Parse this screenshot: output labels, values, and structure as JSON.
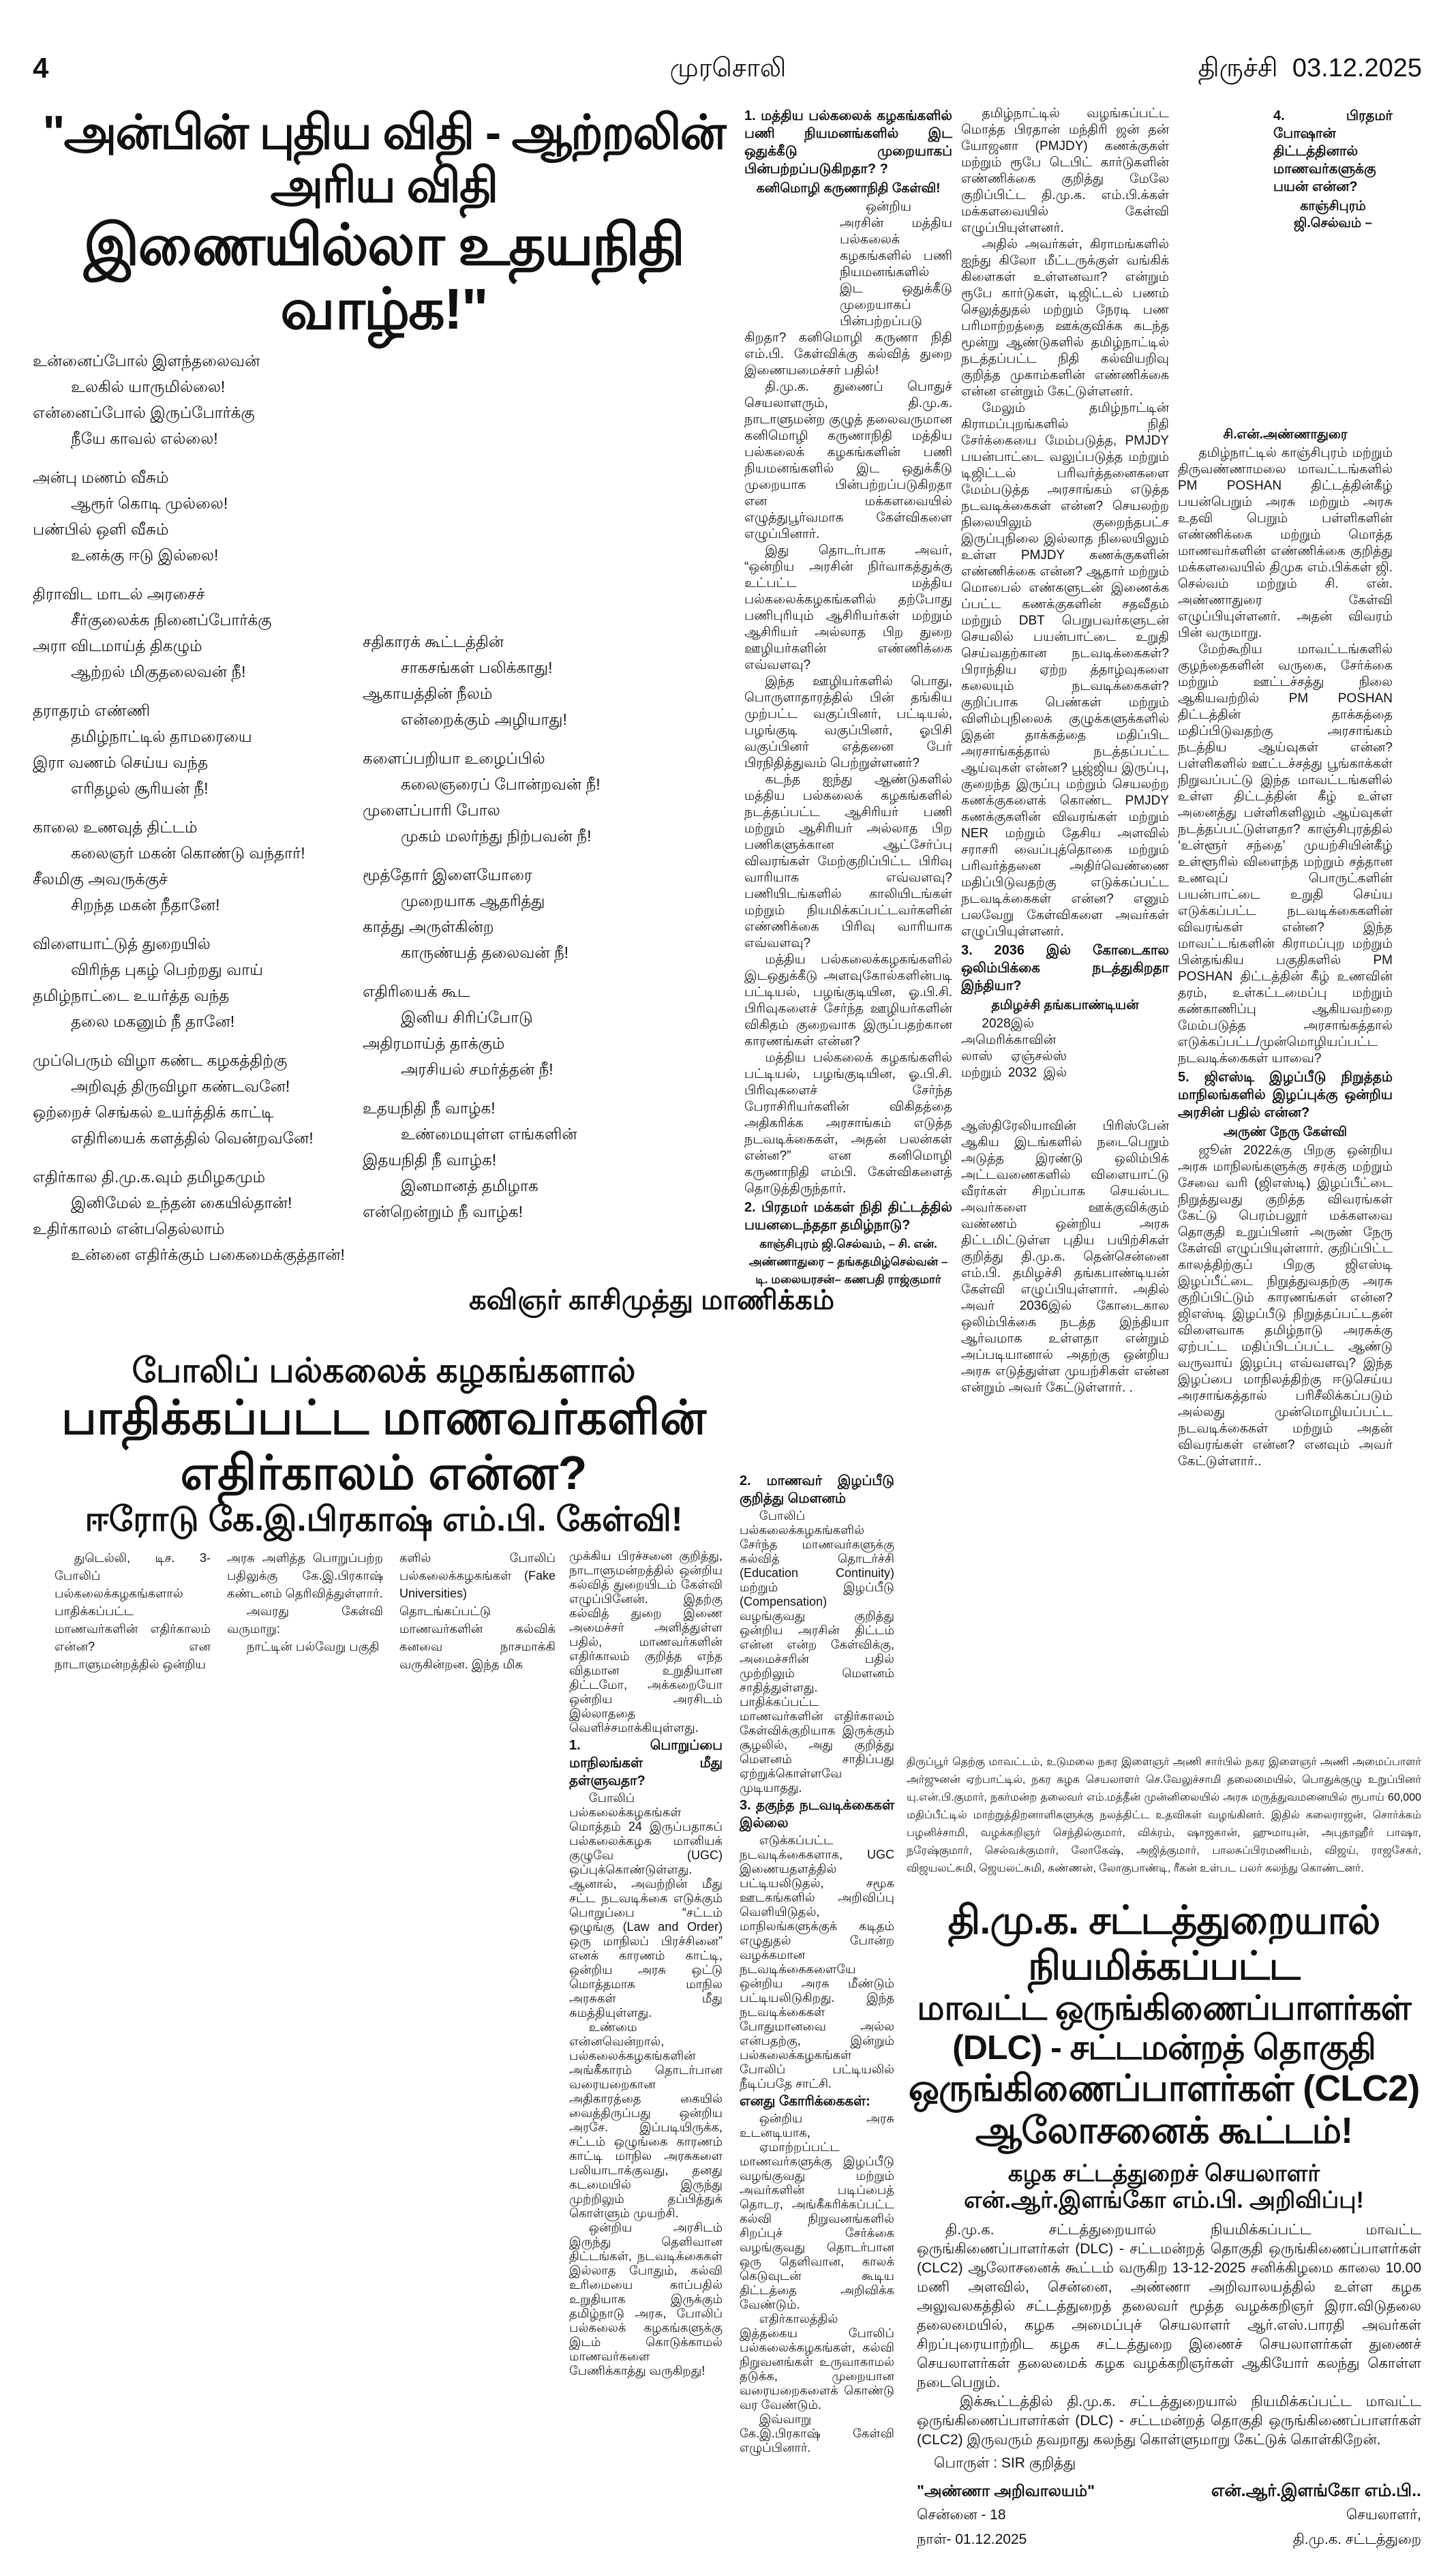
{
  "masthead": {
    "page_number": "4",
    "paper_name": "முரசொலி",
    "edition": "திருச்சி",
    "date": "03.12.2025"
  },
  "poem_article": {
    "headline_line1": "\"அன்பின் புதிய விதி  -  ஆற்றலின் அரிய விதி",
    "headline_line2": "இணையில்லா உதயநிதி வாழ்க!\"",
    "left_stanzas": [
      [
        "உன்னைப்போல் இளந்தலைவன்",
        "உலகில் யாருமில்லை!",
        "என்னைப்போல் இருப்போர்க்கு",
        "நீயே காவல் எல்லை!"
      ],
      [
        "அன்பு மணம் வீசும்",
        "ஆரூர் கொடி முல்லை!",
        "பண்பில் ஒளி வீசும்",
        "உனக்கு ஈடு இல்லை!"
      ],
      [
        "திராவிட மாடல் அரசைச்",
        "சீர்குலைக்க நினைப்போர்க்கு",
        "அரா விடமாய்த் திகழும்",
        "ஆற்றல் மிகுதலைவன் நீ!"
      ],
      [
        "தராதரம் எண்ணி",
        "தமிழ்நாட்டில் தாமரையை",
        "இரா வணம் செய்ய வந்த",
        "எரிதழல் சூரியன் நீ!"
      ],
      [
        "காலை உணவுத் திட்டம்",
        "கலைஞர் மகன் கொண்டு வந்தார்!",
        "சீலமிகு அவருக்குச்",
        "சிறந்த மகன் நீதானே!"
      ],
      [
        "விளையாட்டுத் துறையில்",
        "விரிந்த புகழ் பெற்றது வாய்",
        "தமிழ்நாட்டை உயர்த்த வந்த",
        "தலை மகனும் நீ தானே!"
      ],
      [
        "முப்பெரும் விழா கண்ட கழகத்திற்கு",
        "அறிவுத் திருவிழா கண்டவனே!",
        "ஒற்றைச் செங்கல் உயர்த்திக் காட்டி",
        "எதிரியைக் களத்தில் வென்றவனே!"
      ],
      [
        "எதிர்கால தி.மு.க.வும் தமிழகமும்",
        "இனிமேல் உந்தன் கையில்தான்!",
        "உதிர்காலம் என்பதெல்லாம்",
        "உன்னை எதிர்க்கும் பகைமைக்குத்தான்!"
      ]
    ],
    "right_stanzas": [
      [
        "சதிகாரக் கூட்டத்தின்",
        "சாகசங்கள் பலிக்காது!",
        "ஆகாயத்தின் நீலம்",
        "என்றைக்கும் அழியாது!"
      ],
      [
        "களைப்பறியா உழைப்பில்",
        "கலைஞரைப் போன்றவன் நீ!",
        "முளைப்பாரி போல",
        "முகம் மலர்ந்து நிற்பவன் நீ!"
      ],
      [
        "மூத்தோர் இளையோரை",
        "முறையாக ஆதரித்து",
        "காத்து அருள்கின்ற",
        "காருண்யத் தலைவன் நீ!"
      ],
      [
        "எதிரியைக் கூட",
        "இனிய சிரிப்போடு",
        "அதிரமாய்த் தாக்கும்",
        "அரசியல் சமர்த்தன் நீ!"
      ],
      [
        "உதயநிதி நீ வாழ்க!",
        "உண்மையுள்ள எங்களின்",
        "இதயநிதி நீ வாழ்க!",
        "இனமானத் தமிழாக",
        "என்றென்றும் நீ வாழ்க!"
      ]
    ],
    "poet": "கவிஞர் காசிமுத்து மாணிக்கம்"
  },
  "parliament_questions": {
    "col_a": [
      {
        "type": "h",
        "text": "1.  மத்திய பல்கலைக் கழகங்களில் பணி நியமனங்களில் இட ஒதுக்கீடு முறையாகப் பின்பற்றப்படுகிறதா? ?"
      },
      {
        "type": "by",
        "text": "கனிமொழி கருணாநிதி கேள்வி!"
      },
      {
        "type": "wrap",
        "text": "ஒன்றிய அரசின் மத்திய பல்கலைக் கழகங்களில் பணி நியமனங்களில் இட ஒதுக்கீடு முறையாகப் பின்பற்றப்படு கிறதா? கனிமொழி கருணா நிதி எம்.பி. கேள்விக்கு கல்வித் துறை இணையமைச்சர் பதில்!"
      },
      {
        "type": "p",
        "text": "தி.மு.க. துணைப் பொதுச் செயலாளரும், தி.மு.க. நாடாளுமன்ற குழுத் தலைவருமான கனிமொழி கருணாநிதி மத்திய பல்கலைக் கழகங்களின் பணி நியமனங்களில் இட ஒதுக்கீடு முறையாக பின்பற்றப்படுகிறதா என மக்களவையில் எழுத்துபூர்வமாக கேள்விகளை எழுப்பினார்."
      },
      {
        "type": "p",
        "text": "இது தொடர்பாக அவர், “ஒன்றிய அரசின் நிர்வாகத்துக்கு உட்பட்ட மத்திய பல்கலைக்கழகங்களில் தற்போது பணிபுரியும் ஆசிரியர்கள் மற்றும் ஆசிரியர் அல்லாத பிற துறை ஊழியர்களின் எண்ணிக்கை எவ்வளவு?"
      },
      {
        "type": "p",
        "text": "இந்த ஊழியர்களில் பொது, பொருளாதாரத்தில் பின் தங்கிய முற்பட்ட வகுப்பினர், பட்டியல், பழங்குடி வகுப்பினர், ஓபிசி வகுப்பினர் எத்தனை பேர் பிரநிதித்துவம் பெற்றுள்ளனர்?"
      },
      {
        "type": "p",
        "text": "கடந்த ஐந்து ஆண்டுகளில் மத்திய பல்கலைக் கழகங்களில் நடத்தப்பட்ட ஆசிரியர் பணி மற்றும் ஆசிரியர் அல்லாத பிற பணிகளுக்கான ஆட்சேர்ப்பு விவரங்கள் மேற்குறிப்பிட்ட பிரிவு வாரியாக எவ்வளவு? பணியிடங்களில் காலியிடங்கள் மற்றும் நியமிக்கப்பட்டவர்களின் எண்ணிக்கை பிரிவு வாரியாக எவ்வளவு?"
      },
      {
        "type": "p",
        "text": "மத்திய பல்கலைக்கழகங்களில் இடஒதுக்கீடு அளவுகோல்களின்படி பட்டியல், பழங்குடியின, ஓ.பி.சி. பிரிவுகளைச் சேர்ந்த ஊழியர்களின் விகிதம் குறைவாக இருப்பதற்கான காரணங்கள் என்ன?"
      },
      {
        "type": "p",
        "text": "மத்திய பல்கலைக் கழகங்களில் பட்டியல், பழங்குடியின, ஓ.பி.சி. பிரிவுகளைச் சேர்ந்த பேராசிரியர்களின் விகிதத்தை அதிகரிக்க அரசாங்கம் எடுத்த நடவடிக்கைகள், அதன் பலன்கள் என்ன?” என கனிமொழி கருணாநிதி எம்பி. கேள்விகளைத் தொடுத்திருந்தார்."
      },
      {
        "type": "h",
        "text": "2.  பிரதமர் மக்கள் நிதி திட்டத்தில் பயனடைந்ததா தமிழ்நாடு?"
      },
      {
        "type": "sub",
        "text": "காஞ்சிபுரம் ஜி.செல்வம், – சி. என். அண்ணாதுரை – தங்கதமிழ்செல்வன் – டி. மலையரசன்– கணபதி ராஜ்குமார்"
      }
    ],
    "col_b": [
      {
        "type": "p",
        "text": "தமிழ்நாட்டில் வழங்கப்பட்ட மொத்த பிரதான் மந்திரி ஜன் தன் யோஜனா (PMJDY) கணக்குகள் மற்றும் ரூபே டெபிட் கார்டுகளின் எண்ணிக்கை குறித்து மேலே குறிப்பிட்ட தி.மு.க. எம்.பி.க்கள் மக்களவையில் கேள்வி எழுப்பியுள்ளனர்."
      },
      {
        "type": "p",
        "text": "அதில் அவர்கள், கிராமங்களில் ஐந்து கிலோ மீட்டருக்குள் வங்கிக் கிளைகள் உள்ளனவா? என்றும் ரூபே கார்டுகள், டிஜிட்டல் பணம் செலுத்துதல் மற்றும் நேரடி பண பரிமாற்றத்தை ஊக்குவிக்க கடந்த மூன்று ஆண்டுகளில் தமிழ்நாட்டில் நடத்தப்பட்ட நிதி கல்வியறிவு குறித்த முகாம்களின் எண்ணிக்கை என்ன என்றும் கேட்டுள்ளனர்."
      },
      {
        "type": "p",
        "text": "மேலும் தமிழ்நாட்டின் கிராமப்புறங்களில் நிதி சேர்க்கையை மேம்படுத்த, PMJDY பயன்பாட்டை வலுப்படுத்த மற்றும் டிஜிட்டல் பரிவர்த்தனைகளை மேம்படுத்த அரசாங்கம் எடுத்த நடவடிக்கைகள் என்ன? செயலற்ற நிலையிலும் குறைந்தபட்ச இருப்புநிலை இல்லாத நிலையிலும் உள்ள PMJDY கணக்குகளின் எண்ணிக்கை என்ன? ஆதார் மற்றும் மொபைல் எண்களுடன் இணைக்க ப்பட்ட கணக்குகளின் சதவீதம் மற்றும் DBT பெறுபவர்களுடன் செயலில் பயன்பாட்டை உறுதி செய்வதற்கான நடவடிக்கைகள்? பிராந்திய ஏற்ற த்தாழ்வுகளை கலையும் நடவடிக்கைகள்? குறிப்பாக பெண்கள் மற்றும் விளிம்புநிலைக் குழுக்களுக்களில் இதன் தாக்கத்தை மதிப்பிட அரசாங்கத்தால் நடத்தப்பட்ட ஆய்வுகள் என்ன? பூஜ்ஜிய இருப்பு, குறைந்த இருப்பு மற்றும் செயலற்ற கணக்குகளைக் கொண்ட PMJDY கணக்குகளின் விவரங்கள் மற்றும் NER மற்றும் தேசிய அளவில் சராசரி வைப்புத்தொகை மற்றும் பரிவர்த்தனை அதிர்வெண்ணை மதிப்பிடுவதற்கு எடுக்கப்பட்ட நடவடிக்கைகள் என்ன? எனும் பலவேறு கேள்விகளை அவர்கள் எழுப்பியுள்ளனர்."
      },
      {
        "type": "h",
        "text": "3.  2036 இல் கோடைகால ஒலிம்பிக்கை நடத்துகிறதா இந்தியா?"
      },
      {
        "type": "by",
        "text": "தமிழச்சி தங்கபாண்டியன்"
      },
      {
        "type": "wrapr",
        "text": "2028இல் அமெரிக்காவின் லாஸ் ஏஞ்சல்ஸ் மற்றும் 2032 இல் ஆஸ்திரேலியாவின் பிரிஸ்பேன் ஆகிய இடங்களில் நடைபெறும் அடுத்த இரண்டு ஒலிம்பிக் அட்டவணைகளில் விளையாட்டு வீரர்கள் சிறப்பாக செயல்பட அவர்களை ஊக்குவிக்கும் வண்ணம் ஒன்றிய அரசு திட்டமிட்டுள்ள புதிய பயிற்சிகள் குறித்து தி.மு.க. தென்சென்னை எம்.பி. தமிழச்சி தங்கபாண்டியன் கேள்வி எழுப்பியுள்ளார். அதில் அவர் 2036இல் கோடைகால ஒலிம்பிக்கை நடத்த இந்தியா ஆர்வமாக உள்ளதா என்றும் அப்படியானால் அதற்கு ஒன்றிய அரசு எடுத்துள்ள முயற்சிகள் என்ன என்றும் அவர் கேட்டுள்ளார். ."
      }
    ],
    "col_c": [
      {
        "type": "wraph",
        "text": "4.   பிரதமர் போஷான் திட்டத்தினால் மாணவர்களுக்கு பயன் என்ன?"
      },
      {
        "type": "by",
        "text": "காஞ்சிபுரம் ஜி.செல்வம் – சி.என்.அண்ணாதுரை"
      },
      {
        "type": "p",
        "text": "தமிழ்நாட்டில் காஞ்சிபுரம் மற்றும் திருவண்ணாமலை மாவட்டங்களில் PM POSHAN திட்டத்தின்கீழ் பயன்பெறும் அரசு மற்றும் அரசு உதவி பெறும் பள்ளிகளின் எண்ணிக்கை மற்றும் மொத்த மாணவர்களின் எண்ணிக்கை குறித்து மக்களவையில் திமுக எம்.பிக்கள் ஜி. செல்வம் மற்றும் சி. என். அண்ணாதுரை கேள்வி எழுப்பியுள்ளனர். அதன் விவரம் பின் வருமாறு."
      },
      {
        "type": "p",
        "text": "மேற்கூறிய மாவட்டங்களில் குழந்தைகளின் வருகை, சேர்க்கை மற்றும் ஊட்டச்சத்து நிலை ஆகியவற்றில் PM POSHAN திட்டத்தின் தாக்கத்தை மதிப்பிடுவதற்கு அரசாங்கம் நடத்திய ஆய்வுகள் என்ன? பள்ளிகளில் ஊட்டச்சத்து பூங்காக்கள் நிறுவப்பட்டு இந்த மாவட்டங்களில் உள்ள திட்டத்தின் கீழ் உள்ள அனைத்து பள்ளிகளிலும் ஆய்வுகள் நடத்தப்பட்டுள்ளதா? காஞ்சிபுரத்தில் ‘உள்ளூர் சந்தை’ முயற்சியின்கீழ் உள்ளூரில் விளைந்த மற்றும் சத்தான உணவுப் பொருட்களின் பயன்பாட்டை உறுதி செய்ய எடுக்கப்பட்ட நடவடிக்கைகளின் விவரங்கள் என்ன? இந்த மாவட்டங்களின் கிராமப்புற மற்றும் பின்தங்கிய பகுதிகளில் PM POSHAN திட்டத்தின் கீழ் உணவின் தரம், உள்கட்டமைப்பு மற்றும் கண்காணிப்பு ஆகியவற்றை மேம்படுத்த அரசாங்கத்தால் எடுக்கப்பட்ட/முன்மொழியப்பட்ட நடவடிக்கைகள் யாவை?"
      },
      {
        "type": "h",
        "text": "5.  ஜிஎஸ்டி இழப்பீடு நிறுத்தம் மாநிலங்களில் இழப்புக்கு ஒன்றிய அரசின் பதில் என்ன?"
      },
      {
        "type": "by",
        "text": "அருண் நேரு கேள்வி"
      },
      {
        "type": "p",
        "text": "ஜூன் 2022க்கு பிறகு ஒன்றிய அரசு மாநிலங்களுக்கு சரக்கு மற்றும் சேவை வரி (ஜிஎஸ்டி) இழப்பீட்டை நிறுத்துவது குறித்த விவரங்கள் கேட்டு பெரம்பலூர் மக்களவை தொகுதி உறுப்பினர் அருண் நேரு கேள்வி எழுப்பியுள்ளார். குறிப்பிட்ட காலத்திற்குப் பிறகு ஜிஎஸ்டி இழப்பீட்டை நிறுத்துவதற்கு அரசு குறிப்பிட்டும் காரணங்கள் என்ன? ஜிஎஸ்டி இழப்பீடு நிறுத்தப்பட்டதன் விளைவாக தமிழ்நாடு அரசுக்கு ஏற்பட்ட மதிப்பிடப்பட்ட ஆண்டு வருவாய் இழப்பு எவ்வளவு? இந்த இழப்பை மாநிலத்திற்கு ஈடுசெய்ய அரசாங்கத்தால் பரிசீலிக்கப்படும் அல்லது முன்மொழியப்பட்ட நடவடிக்கைகள் மற்றும் அதன் விவரங்கள் என்ன? எனவும் அவர் கேட்டுள்ளார்.."
      }
    ]
  },
  "fake_university_article": {
    "headline_line1": "போலிப் பல்கலைக் கழகங்களால்",
    "headline_line2": "பாதிக்கப்பட்ட மாணவர்களின் எதிர்காலம் என்ன?",
    "headline_line3": "ஈரோடு கே.இ.பிரகாஷ் எம்.பி. கேள்வி!",
    "intro_col1": [
      {
        "type": "p",
        "text": "துடெல்லி, டிச. 3- போலிப் பல்கலைக்கழகங்களால் பாதிக்கப்பட்ட மாணவர்களின் எதிர்காலம் என்ன? என நாடாளுமன்றத்தில் ஒன்றிய"
      }
    ],
    "intro_col2": [
      {
        "type": "p0",
        "text": "அரசு அளித்த பொறுப்பற்ற பதிலுக்கு கே.இ.பிரகாஷ் கண்டனம் தெரிவித்துள்ளார்."
      },
      {
        "type": "p",
        "text": "அவரது கேள்வி வருமாறு:"
      },
      {
        "type": "p",
        "text": "நாட்டின் பல்வேறு பகுதி"
      }
    ],
    "intro_col3": [
      {
        "type": "p0",
        "text": "களில் போலிப் பல்கலைக்கழகங்கள் (Fake Universities) தொடங்கப்பட்டு மாணவர்களின் கல்விக் கனவை நாசமாக்கி வருகின்றன. இந்த மிக"
      }
    ],
    "body_col1": [
      {
        "type": "p0",
        "text": "முக்கிய பிரச்சனை குறித்து, நாடாளுமன்றத்தில் ஒன்றிய கல்வித் துறையிடம் கேள்வி எழுப்பினேன். இதற்கு கல்வித் துறை இணை அமைச்சர் அளித்துள்ள பதில், மாணவர்களின் எதிர்காலம் குறித்த எந்த விதமான உறுதியான திட்டமோ, அக்கறையோ ஒன்றிய அரசிடம் இல்லாததை வெளிச்சமாக்கியுள்ளது."
      },
      {
        "type": "h",
        "text": "1. பொறுப்பை மாநிலங்கள் மீது தள்ளுவதா?"
      },
      {
        "type": "p",
        "text": "போலிப் பல்கலைக்கழகங்கள் மொத்தம் 24 இருப்பதாகப் பல்கலைக்கழக மானியக் குழுவே (UGC) ஒப்புக்கொண்டுள்ளது. ஆனால், அவற்றின் மீது சட்ட நடவடிக்கை எடுக்கும் பொறுப்பை “சட்டம் ஒழுங்கு (Law and Order) ஒரு மாநிலப் பிரச்சினை” எனக் காரணம் காட்டி, ஒன்றிய அரசு ஒட்டு மொத்தமாக மாநில அரசுகள் மீது சுமத்தியுள்ளது."
      },
      {
        "type": "p",
        "text": "உண்மை என்னவென்றால், பல்கலைக்கழகங்களின் அங்கீகாரம் தொடர்பான வரையறைகான அதிகாரத்தை கையில் வைத்திருப்பது ஒன்றிய அரசே. இப்படியிருக்க, சட்டம் ஒழுங்கை காரணம் காட்டி மாநில அரசுகளை பலியாடாக்குவது, தனது கடமையில் இருந்து முற்றிலும் தப்பித்துக் கொள்ளும் முயற்சி."
      },
      {
        "type": "p",
        "text": "ஒன்றிய அரசிடம் இருந்து தெளிவான திட்டங்கள், நடவடிக்கைகள் இல்லாத போதும், கல்வி உரிமையை காப்பதில் உறுதியாக இருக்கும் தமிழ்நாடு அரசு, போலிப் பல்கலைக் கழகங்களுக்கு இடம் கொடுக்காமல் மாணவர்களை பேணிக்காத்து வருகிறது!"
      }
    ],
    "body_col2": [
      {
        "type": "h",
        "text": "2. மாணவர் இழப்பீடு குறித்து மௌனம்"
      },
      {
        "type": "p",
        "text": "போலிப் பல்கலைக்கழகங்களில் சேர்ந்த மாணவர்களுக்கு கல்வித் தொடர்ச்சி (Education Continuity) மற்றும் இழப்பீடு (Compensation) வழங்குவது குறித்து ஒன்றிய அரசின் திட்டம் என்ன என்ற கேள்விக்கு, அமைச்சரின் பதில் முற்றிலும் மௌனம் சாதித்துள்ளது. பாதிக்கப்பட்ட மாணவர்களின் எதிர்காலம் கேள்விக்குறியாக இருக்கும் சூழலில், அது குறித்து மௌனம் சாதிப்பது ஏற்றுக்கொள்ளவே முடியாதது."
      },
      {
        "type": "h",
        "text": "3. தகுந்த நடவடிக்கைகள் இல்லை"
      },
      {
        "type": "p",
        "text": "எடுக்கப்பட்ட நடவடிக்கைகளாக, UGC இணையதளத்தில் பட்டியலிடுதல், சமூக ஊடகங்களில் அறிவிப்பு வெளியிடுதல், மாநிலங்களுக்குக் கடிதம் எழுதுதல் போன்ற வழக்கமான நடவடிக்கைகளையே ஒன்றிய அரசு மீண்டும் பட்டியலிடுகிறது. இந்த நடவடிக்கைகள் போதுமானவை அல்ல என்பதற்கு, இன்றும் பல்கலைக்கழகங்கள் போலிப் பட்டியலில் நீடிப்பதே சாட்சி."
      },
      {
        "type": "h",
        "text": "எனது கோரிக்கைகள்:"
      },
      {
        "type": "p",
        "text": "ஒன்றிய அரசு உடனடியாக,"
      },
      {
        "type": "p",
        "text": "ஏமாற்றப்பட்ட மாணவர்களுக்கு இழப்பீடு வழங்குவது மற்றும் அவர்களின் படிப்பைத் தொடர, அங்கீகரிக்கப்பட்ட கல்வி நிறுவனங்களில் சிறப்புச் சேர்க்கை வழங்குவது தொடர்பான ஒரு தெளிவான, காலக் கெடுவுடன் கூடிய திட்டத்தை அறிவிக்க வேண்டும்."
      },
      {
        "type": "p",
        "text": "எதிர்காலத்தில் இத்தகைய போலிப் பல்கலைக்கழகங்கள், கல்வி நிறுவனங்கள் உருவாகாமல் தடுக்க, முறையான வரையறைகளைக் கொண்டு வர வேண்டும்."
      },
      {
        "type": "p",
        "text": "இவ்வாறு கே.இ.பிரகாஷ் கேள்வி எழுப்பினார்."
      }
    ]
  },
  "udumalai_news": {
    "body": "திருப்பூர் தெற்கு மாவட்டம், உடுமலை நகர இளைஞர் அணி சார்பில் நகர இளைஞர் அணி அமைப்பாளர் அர்ஜுனன் ஏற்பாட்டில், நகர கழக செயலாளர் செ.வேலுச்சாமி தலைமையில், பொதுக்குழு உறுப்பினர் யு.என்.பி.குமார், நகர்மன்ற தலைவர் எம்.மத்தீன் முன்னிலையில் அரசு மருத்துவமனையில் ரூபாய் 60,000 மதிப்பீட்டில் மாற்றுத்திறனாளிகளுக்கு நலத்திட்ட உதவிகள் வழங்கினர். இதில் கலைராஜன், சொர்க்கம் பழனிச்சாமி, வழக்கறிஞர் செந்தில்குமார், விக்ரம், ஷாஜகான், ஹுமாயுன், அபுதாஹீர் பாஷா, நரேஷ்குமார், செல்வக்குமார், லோகேஷ், அஜித்குமார், பாலசுப்பிரமணியம், விஜய், ராஜசேகர், விஜயலட்சுமி, ஜெயலட்சுமி, கண்ணன், லோகுபாண்டி, ரீகன் உள்பட பலர் கலந்து கொண்டனர்."
  },
  "dlc_notice": {
    "headline_line1": "தி.மு.க.  சட்டத்துறையால்  நியமிக்கப்பட்ட",
    "headline_line2": "மாவட்ட ஒருங்கிணைப்பாளர்கள் (DLC) - சட்டமன்றத் தொகுதி",
    "headline_line3": "ஒருங்கிணைப்பாளர்கள் (CLC2) ஆலோசனைக் கூட்டம்!",
    "subheadline": "கழக சட்டத்துறைச் செயலாளர் என்.ஆர்.இளங்கோ எம்.பி. அறிவிப்பு!",
    "para1": "தி.மு.க. சட்டத்துறையால் நியமிக்கப்பட்ட மாவட்ட ஒருங்கிணைப்பாளர்கள் (DLC) - சட்டமன்றத் தொகுதி ஒருங்கிணைப்பாளர்கள் (CLC2) ஆலோசனைக் கூட்டம் வருகிற 13-12-2025 சனிக்கிழமை காலை 10.00 மணி அளவில், சென்னை, அண்ணா அறிவாலயத்தில் உள்ள கழக அலுவலகத்தில் சட்டத்துறைத் தலைவர் மூத்த வழக்கறிஞர் இரா.விடுதலை தலைமையில், கழக அமைப்புச் செயலாளர் ஆர்.எஸ்.பாரதி அவர்கள் சிறப்புரையாற்றிட கழக சட்டத்துறை இணைச் செயலாளர்கள் துணைச் செயலாளர்கள் தலைமைக் கழக வழக்கறிஞர்கள் ஆகியோர் கலந்து கொள்ள நடைபெறும்.",
    "para2": "இக்கூட்டத்தில் தி.மு.க. சட்டத்துறையால் நியமிக்கப்பட்ட மாவட்ட ஒருங்கிணைப்பாளர்கள் (DLC) - சட்டமன்றத் தொகுதி ஒருங்கிணைப்பாளர்கள் (CLC2) இருவரும் தவறாது கலந்து கொள்ளுமாறு கேட்டுக் கொள்கிறேன்.",
    "subject": "பொருள் :  SIR குறித்து",
    "place_name": "\"அண்ணா அறிவாலயம்\"",
    "city": "சென்னை - 18",
    "date_line": "நாள்- 01.12.2025",
    "signatory": "என்.ஆர்.இளங்கோ எம்.பி..",
    "designation": "செயலாளர்,",
    "organisation": "தி.மு.க. சட்டத்துறை"
  }
}
